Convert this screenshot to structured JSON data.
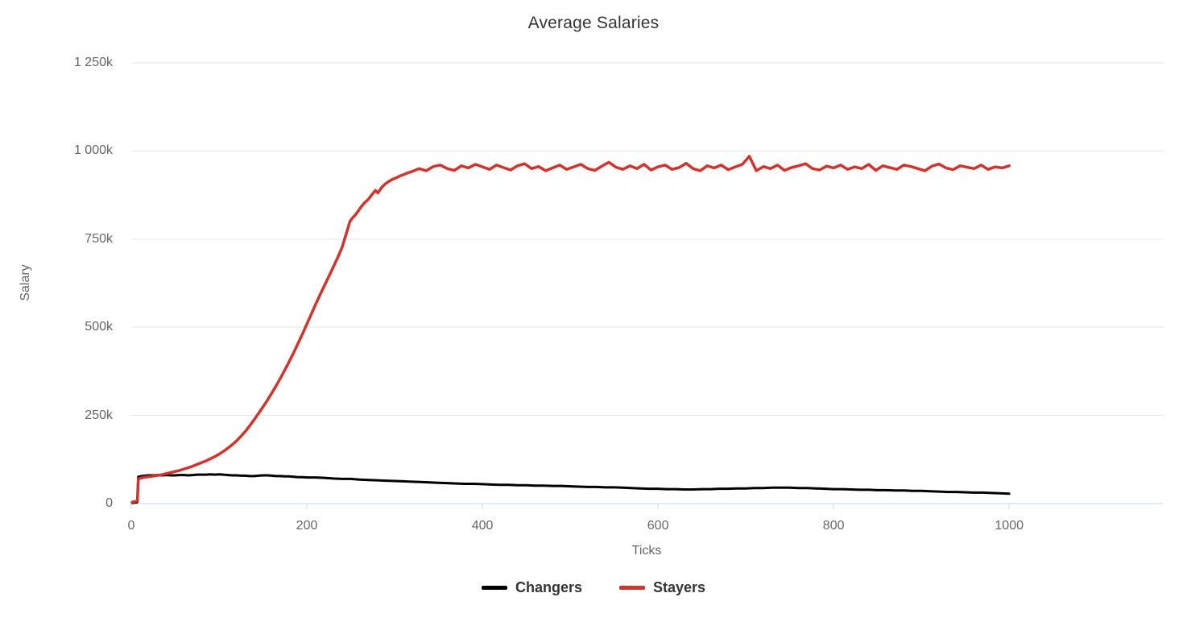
{
  "chart_data": {
    "type": "line",
    "title": "Average Salaries",
    "xlabel": "Ticks",
    "ylabel": "Salary",
    "y_unit": "thousands",
    "xlim": [
      0,
      1175
    ],
    "ylim": [
      0,
      1250
    ],
    "grid": "horizontal-only",
    "legend_position": "bottom-center",
    "x_ticks": [
      {
        "v": 0,
        "label": "0"
      },
      {
        "v": 200,
        "label": "200"
      },
      {
        "v": 400,
        "label": "400"
      },
      {
        "v": 600,
        "label": "600"
      },
      {
        "v": 800,
        "label": "800"
      },
      {
        "v": 1000,
        "label": "1000"
      }
    ],
    "y_ticks": [
      {
        "v": 0,
        "label": "0"
      },
      {
        "v": 250,
        "label": "250k"
      },
      {
        "v": 500,
        "label": "500k"
      },
      {
        "v": 750,
        "label": "750k"
      },
      {
        "v": 1000,
        "label": "1 000k"
      },
      {
        "v": 1250,
        "label": "1 250k"
      }
    ],
    "colors": {
      "grid": "#e6e6e6",
      "axis": "#ccd6eb",
      "tick_label": "#666666",
      "axis_title": "#666666",
      "title": "#333333",
      "legend_text": "#333333"
    },
    "series": [
      {
        "name": "Changers",
        "color": "#000000",
        "line_width": 3,
        "points": [
          [
            1,
            2
          ],
          [
            5,
            3
          ],
          [
            7,
            4
          ],
          [
            8,
            76
          ],
          [
            12,
            78
          ],
          [
            16,
            79
          ],
          [
            20,
            80
          ],
          [
            25,
            80
          ],
          [
            30,
            81
          ],
          [
            35,
            80
          ],
          [
            40,
            81
          ],
          [
            45,
            80
          ],
          [
            50,
            80
          ],
          [
            55,
            81
          ],
          [
            60,
            81
          ],
          [
            65,
            80
          ],
          [
            70,
            81
          ],
          [
            75,
            82
          ],
          [
            80,
            82
          ],
          [
            85,
            82
          ],
          [
            90,
            83
          ],
          [
            95,
            82
          ],
          [
            100,
            83
          ],
          [
            105,
            82
          ],
          [
            110,
            81
          ],
          [
            115,
            80
          ],
          [
            120,
            80
          ],
          [
            125,
            79
          ],
          [
            130,
            79
          ],
          [
            135,
            78
          ],
          [
            140,
            78
          ],
          [
            145,
            79
          ],
          [
            150,
            80
          ],
          [
            155,
            80
          ],
          [
            160,
            79
          ],
          [
            165,
            78
          ],
          [
            170,
            78
          ],
          [
            175,
            77
          ],
          [
            180,
            77
          ],
          [
            185,
            76
          ],
          [
            190,
            75
          ],
          [
            195,
            75
          ],
          [
            200,
            74
          ],
          [
            210,
            74
          ],
          [
            220,
            73
          ],
          [
            230,
            71
          ],
          [
            240,
            70
          ],
          [
            250,
            70
          ],
          [
            260,
            68
          ],
          [
            270,
            67
          ],
          [
            280,
            66
          ],
          [
            290,
            65
          ],
          [
            300,
            64
          ],
          [
            310,
            63
          ],
          [
            320,
            62
          ],
          [
            330,
            61
          ],
          [
            340,
            60
          ],
          [
            350,
            59
          ],
          [
            360,
            58
          ],
          [
            370,
            57
          ],
          [
            380,
            56
          ],
          [
            390,
            56
          ],
          [
            400,
            55
          ],
          [
            410,
            54
          ],
          [
            420,
            53
          ],
          [
            430,
            53
          ],
          [
            440,
            52
          ],
          [
            450,
            52
          ],
          [
            460,
            51
          ],
          [
            470,
            51
          ],
          [
            480,
            50
          ],
          [
            490,
            50
          ],
          [
            500,
            49
          ],
          [
            510,
            48
          ],
          [
            520,
            47
          ],
          [
            530,
            47
          ],
          [
            540,
            46
          ],
          [
            550,
            46
          ],
          [
            560,
            45
          ],
          [
            570,
            44
          ],
          [
            580,
            43
          ],
          [
            590,
            42
          ],
          [
            600,
            42
          ],
          [
            610,
            41
          ],
          [
            620,
            41
          ],
          [
            630,
            40
          ],
          [
            640,
            40
          ],
          [
            650,
            41
          ],
          [
            660,
            41
          ],
          [
            670,
            42
          ],
          [
            680,
            42
          ],
          [
            690,
            43
          ],
          [
            700,
            43
          ],
          [
            710,
            44
          ],
          [
            720,
            44
          ],
          [
            730,
            45
          ],
          [
            740,
            45
          ],
          [
            750,
            45
          ],
          [
            760,
            44
          ],
          [
            770,
            44
          ],
          [
            780,
            43
          ],
          [
            790,
            42
          ],
          [
            800,
            41
          ],
          [
            810,
            41
          ],
          [
            820,
            40
          ],
          [
            830,
            39
          ],
          [
            840,
            39
          ],
          [
            850,
            38
          ],
          [
            860,
            38
          ],
          [
            870,
            37
          ],
          [
            880,
            37
          ],
          [
            890,
            36
          ],
          [
            900,
            36
          ],
          [
            910,
            35
          ],
          [
            920,
            34
          ],
          [
            930,
            33
          ],
          [
            940,
            33
          ],
          [
            950,
            32
          ],
          [
            960,
            31
          ],
          [
            970,
            31
          ],
          [
            980,
            30
          ],
          [
            990,
            29
          ],
          [
            1000,
            28
          ]
        ]
      },
      {
        "name": "Stayers",
        "color": "#d0342c",
        "line_width": 3.5,
        "points": [
          [
            1,
            4
          ],
          [
            5,
            6
          ],
          [
            7,
            8
          ],
          [
            8,
            70
          ],
          [
            12,
            73
          ],
          [
            16,
            75
          ],
          [
            20,
            76
          ],
          [
            25,
            78
          ],
          [
            30,
            80
          ],
          [
            35,
            82
          ],
          [
            40,
            85
          ],
          [
            45,
            88
          ],
          [
            50,
            91
          ],
          [
            55,
            94
          ],
          [
            60,
            98
          ],
          [
            65,
            102
          ],
          [
            70,
            106
          ],
          [
            75,
            111
          ],
          [
            80,
            116
          ],
          [
            85,
            121
          ],
          [
            90,
            127
          ],
          [
            95,
            133
          ],
          [
            100,
            140
          ],
          [
            105,
            148
          ],
          [
            110,
            157
          ],
          [
            115,
            167
          ],
          [
            120,
            178
          ],
          [
            125,
            191
          ],
          [
            130,
            205
          ],
          [
            135,
            221
          ],
          [
            140,
            238
          ],
          [
            145,
            256
          ],
          [
            150,
            274
          ],
          [
            155,
            293
          ],
          [
            160,
            313
          ],
          [
            165,
            334
          ],
          [
            170,
            356
          ],
          [
            175,
            379
          ],
          [
            180,
            403
          ],
          [
            185,
            428
          ],
          [
            190,
            454
          ],
          [
            195,
            481
          ],
          [
            200,
            509
          ],
          [
            205,
            537
          ],
          [
            210,
            565
          ],
          [
            215,
            592
          ],
          [
            220,
            618
          ],
          [
            225,
            644
          ],
          [
            230,
            670
          ],
          [
            235,
            697
          ],
          [
            240,
            726
          ],
          [
            243,
            750
          ],
          [
            246,
            775
          ],
          [
            249,
            800
          ],
          [
            252,
            810
          ],
          [
            255,
            818
          ],
          [
            258,
            828
          ],
          [
            262,
            842
          ],
          [
            266,
            854
          ],
          [
            270,
            863
          ],
          [
            274,
            876
          ],
          [
            278,
            888
          ],
          [
            281,
            881
          ],
          [
            285,
            896
          ],
          [
            289,
            906
          ],
          [
            293,
            913
          ],
          [
            297,
            919
          ],
          [
            301,
            923
          ],
          [
            305,
            928
          ],
          [
            310,
            933
          ],
          [
            315,
            938
          ],
          [
            320,
            942
          ],
          [
            328,
            950
          ],
          [
            336,
            944
          ],
          [
            344,
            956
          ],
          [
            352,
            960
          ],
          [
            360,
            950
          ],
          [
            368,
            945
          ],
          [
            376,
            958
          ],
          [
            384,
            952
          ],
          [
            392,
            962
          ],
          [
            400,
            955
          ],
          [
            408,
            948
          ],
          [
            416,
            960
          ],
          [
            424,
            953
          ],
          [
            432,
            946
          ],
          [
            440,
            958
          ],
          [
            448,
            964
          ],
          [
            456,
            950
          ],
          [
            464,
            956
          ],
          [
            472,
            944
          ],
          [
            480,
            952
          ],
          [
            488,
            960
          ],
          [
            496,
            948
          ],
          [
            504,
            955
          ],
          [
            512,
            962
          ],
          [
            520,
            950
          ],
          [
            528,
            945
          ],
          [
            536,
            957
          ],
          [
            544,
            968
          ],
          [
            552,
            954
          ],
          [
            560,
            948
          ],
          [
            568,
            958
          ],
          [
            576,
            950
          ],
          [
            584,
            962
          ],
          [
            592,
            946
          ],
          [
            600,
            955
          ],
          [
            608,
            960
          ],
          [
            616,
            948
          ],
          [
            624,
            953
          ],
          [
            632,
            965
          ],
          [
            640,
            950
          ],
          [
            648,
            944
          ],
          [
            656,
            958
          ],
          [
            664,
            952
          ],
          [
            672,
            960
          ],
          [
            680,
            947
          ],
          [
            688,
            955
          ],
          [
            696,
            962
          ],
          [
            704,
            985
          ],
          [
            712,
            944
          ],
          [
            720,
            956
          ],
          [
            728,
            950
          ],
          [
            736,
            960
          ],
          [
            744,
            945
          ],
          [
            752,
            953
          ],
          [
            760,
            958
          ],
          [
            768,
            964
          ],
          [
            776,
            950
          ],
          [
            784,
            946
          ],
          [
            792,
            957
          ],
          [
            800,
            952
          ],
          [
            808,
            960
          ],
          [
            816,
            948
          ],
          [
            824,
            955
          ],
          [
            832,
            950
          ],
          [
            840,
            962
          ],
          [
            848,
            945
          ],
          [
            856,
            958
          ],
          [
            864,
            953
          ],
          [
            872,
            948
          ],
          [
            880,
            960
          ],
          [
            888,
            956
          ],
          [
            896,
            950
          ],
          [
            904,
            944
          ],
          [
            912,
            957
          ],
          [
            920,
            963
          ],
          [
            928,
            952
          ],
          [
            936,
            947
          ],
          [
            944,
            958
          ],
          [
            952,
            954
          ],
          [
            960,
            950
          ],
          [
            968,
            960
          ],
          [
            976,
            948
          ],
          [
            984,
            955
          ],
          [
            992,
            952
          ],
          [
            1000,
            958
          ]
        ]
      }
    ]
  }
}
